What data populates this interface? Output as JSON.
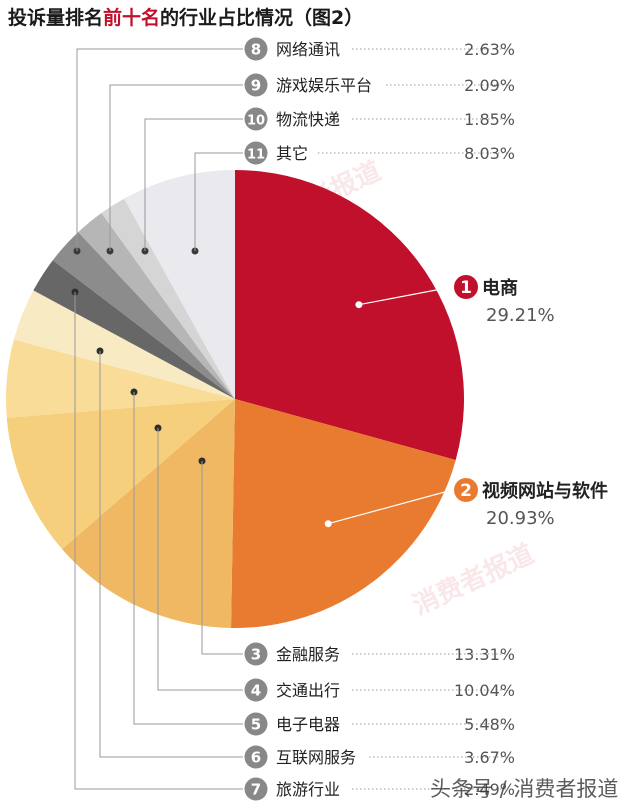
{
  "title": {
    "prefix": "投诉量排名",
    "highlight": "前十名",
    "suffix": "的行业占比情况（图2）"
  },
  "chart_data": {
    "type": "pie",
    "start": "12 o'clock",
    "direction": "clockwise",
    "slices": [
      {
        "rank": "1",
        "label": "电商",
        "value": 29.21,
        "value_text": "29.21%",
        "color": "#c0102b"
      },
      {
        "rank": "2",
        "label": "视频网站与软件",
        "value": 20.93,
        "value_text": "20.93%",
        "color": "#e87b30"
      },
      {
        "rank": "3",
        "label": "金融服务",
        "value": 13.31,
        "value_text": "13.31%",
        "color": "#f0b862"
      },
      {
        "rank": "4",
        "label": "交通出行",
        "value": 10.04,
        "value_text": "10.04%",
        "color": "#f6cf7c"
      },
      {
        "rank": "5",
        "label": "电子电器",
        "value": 5.48,
        "value_text": "5.48%",
        "color": "#f8dc97"
      },
      {
        "rank": "6",
        "label": "互联网服务",
        "value": 3.67,
        "value_text": "3.67%",
        "color": "#f8ebc4"
      },
      {
        "rank": "7",
        "label": "旅游行业",
        "value": 2.49,
        "value_text": "2.49%",
        "color": "#676767"
      },
      {
        "rank": "8",
        "label": "网络通讯",
        "value": 2.63,
        "value_text": "2.63%",
        "color": "#8c8c8c"
      },
      {
        "rank": "9",
        "label": "游戏娱乐平台",
        "value": 2.09,
        "value_text": "2.09%",
        "color": "#b6b6b6"
      },
      {
        "rank": "10",
        "label": "物流快递",
        "value": 1.85,
        "value_text": "1.85%",
        "color": "#d5d5d5"
      },
      {
        "rank": "11",
        "label": "其它",
        "value": 8.03,
        "value_text": "8.03%",
        "color": "#e9e9ee"
      }
    ]
  },
  "watermark": {
    "mark": "消费者报道",
    "footer": "头条号 / 消费者报道"
  },
  "colors": {
    "title_text": "#1a1a1a",
    "title_highlight": "#c0102b",
    "label_text": "#222222",
    "value_text": "#555555",
    "leader_line": "#999999",
    "badge_gray": "#888888"
  }
}
